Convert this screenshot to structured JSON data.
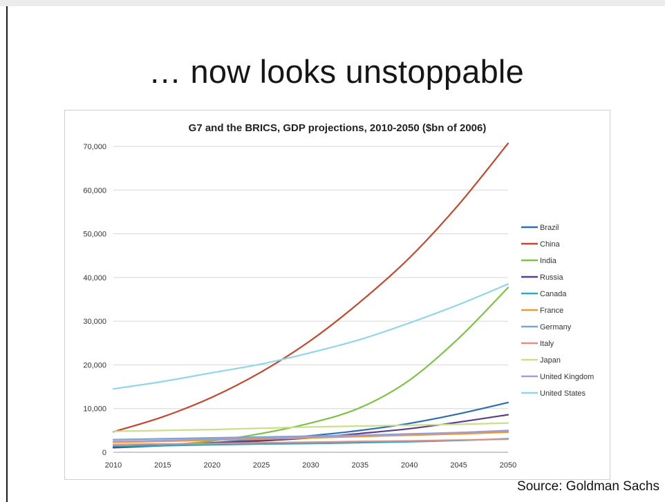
{
  "slide": {
    "title": "… now looks unstoppable",
    "source": "Source: Goldman Sachs"
  },
  "chart_data": {
    "type": "line",
    "title": "G7 and the BRICS, GDP projections, 2010-2050 ($bn of 2006)",
    "xlabel": "",
    "ylabel": "",
    "x": [
      2010,
      2015,
      2020,
      2025,
      2030,
      2035,
      2040,
      2045,
      2050
    ],
    "xlim": [
      2010,
      2050
    ],
    "ylim": [
      0,
      70000
    ],
    "yticks": [
      0,
      10000,
      20000,
      30000,
      40000,
      50000,
      60000,
      70000
    ],
    "ytick_labels": [
      "0",
      "10,000",
      "20,000",
      "30,000",
      "40,000",
      "50,000",
      "60,000",
      "70,000"
    ],
    "grid": "horizontal",
    "legend_position": "right",
    "series": [
      {
        "name": "Brazil",
        "color": "#2e6db5",
        "values": [
          1300,
          1700,
          2200,
          2900,
          3800,
          5000,
          6600,
          8800,
          11400
        ]
      },
      {
        "name": "China",
        "color": "#c8452c",
        "values": [
          4700,
          8100,
          12600,
          18400,
          25600,
          34400,
          44500,
          56700,
          70700
        ]
      },
      {
        "name": "India",
        "color": "#7cc242",
        "values": [
          1000,
          1600,
          2600,
          4300,
          6700,
          10200,
          16500,
          26100,
          37700
        ]
      },
      {
        "name": "Russia",
        "color": "#5a3d8e",
        "values": [
          1100,
          1500,
          2000,
          2600,
          3300,
          4300,
          5400,
          6900,
          8600
        ]
      },
      {
        "name": "Canada",
        "color": "#2ba8c4",
        "values": [
          1400,
          1500,
          1700,
          1900,
          2000,
          2200,
          2400,
          2700,
          3100
        ]
      },
      {
        "name": "France",
        "color": "#ef9a2b",
        "values": [
          2300,
          2500,
          2800,
          3000,
          3300,
          3600,
          3900,
          4200,
          4600
        ]
      },
      {
        "name": "Germany",
        "color": "#79a6d0",
        "values": [
          2900,
          3100,
          3300,
          3500,
          3700,
          3900,
          4200,
          4500,
          4900
        ]
      },
      {
        "name": "Italy",
        "color": "#e08d88",
        "values": [
          1800,
          1900,
          2000,
          2200,
          2300,
          2500,
          2600,
          2800,
          3000
        ]
      },
      {
        "name": "Japan",
        "color": "#c9df8a",
        "values": [
          4800,
          5000,
          5200,
          5500,
          5800,
          6000,
          6200,
          6400,
          6700
        ]
      },
      {
        "name": "United Kingdom",
        "color": "#a99ad0",
        "values": [
          2500,
          2700,
          3000,
          3200,
          3500,
          3800,
          4100,
          4500,
          5000
        ]
      },
      {
        "name": "United States",
        "color": "#8fd6ea",
        "values": [
          14500,
          16200,
          18200,
          20200,
          22800,
          25800,
          29600,
          33800,
          38500
        ]
      }
    ]
  }
}
